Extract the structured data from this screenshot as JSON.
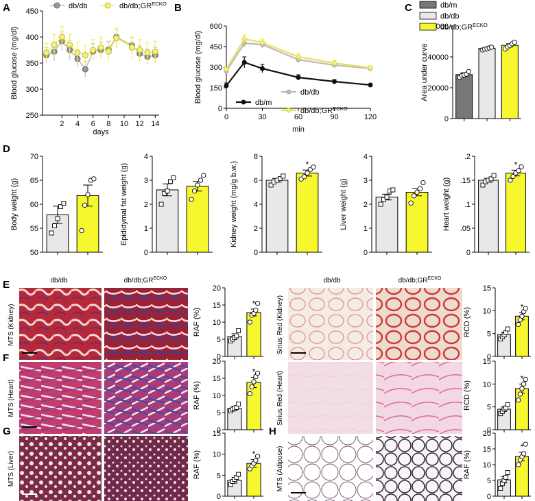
{
  "figure": {
    "panels": [
      "A",
      "B",
      "C",
      "D",
      "E",
      "F",
      "G",
      "H"
    ],
    "image_labels": {
      "col1": "db/db",
      "col2": "db/db;GR",
      "col2_sup": "ECKO"
    },
    "row_labels": {
      "e_left": "MTS (Kidney)",
      "f_left": "MTS (Heart)",
      "g_left": "MTS (Liver)",
      "e_right": "Sirius Red (Kidney)",
      "f_right": "Sirius Red (Heart)",
      "h_right": "MTS (Adipose)"
    },
    "colors": {
      "dbm": "#777777",
      "dbdb": "#e8e8e8",
      "gr": "#f7f72e",
      "line_dbdb": "#bbbbbb",
      "line_gr": "#f5f050",
      "line_dbm": "#111111"
    }
  },
  "chart_data": [
    {
      "id": "A",
      "type": "line",
      "title": "",
      "xlabel": "days",
      "ylabel": "Blood glucose (mg/dl)",
      "ylim": [
        250,
        450
      ],
      "yticks": [
        250,
        300,
        350,
        400,
        450
      ],
      "xlim": [
        0,
        14
      ],
      "xticks": [
        2,
        4,
        6,
        8,
        10,
        12,
        14
      ],
      "legend": [
        {
          "name": "db/db"
        },
        {
          "name": "db/db;GR",
          "sup": "ECKO"
        }
      ],
      "series": [
        {
          "name": "db/db",
          "x": [
            0,
            1,
            2,
            3,
            4,
            5,
            6,
            7,
            8,
            9,
            11,
            12,
            13,
            14
          ],
          "y": [
            365,
            372,
            392,
            375,
            358,
            338,
            372,
            375,
            376,
            400,
            384,
            368,
            362,
            365
          ],
          "err": [
            15,
            18,
            18,
            18,
            15,
            15,
            15,
            15,
            15,
            15,
            15,
            15,
            15,
            15
          ]
        },
        {
          "name": "db/db;GR",
          "x": [
            0,
            1,
            2,
            3,
            4,
            5,
            6,
            7,
            8,
            9,
            11,
            12,
            13,
            14
          ],
          "y": [
            370,
            385,
            400,
            385,
            370,
            365,
            375,
            380,
            372,
            398,
            380,
            375,
            370,
            372
          ],
          "err": [
            18,
            20,
            20,
            20,
            20,
            20,
            20,
            20,
            20,
            20,
            20,
            20,
            20,
            20
          ]
        }
      ]
    },
    {
      "id": "B",
      "type": "line",
      "xlabel": "min",
      "ylabel": "Blood glucose (mg/dl)",
      "ylim": [
        0,
        600
      ],
      "yticks": [
        0,
        150,
        300,
        450,
        600
      ],
      "xticks": [
        0,
        30,
        60,
        90,
        120
      ],
      "legend": [
        {
          "name": "db/db"
        },
        {
          "name": "db/m"
        },
        {
          "name": "db/db;GR",
          "sup": "ECKO"
        }
      ],
      "series": [
        {
          "name": "db/m",
          "x": [
            0,
            15,
            30,
            60,
            90,
            120
          ],
          "y": [
            165,
            335,
            290,
            225,
            195,
            170
          ],
          "err": [
            20,
            40,
            30,
            20,
            15,
            10
          ]
        },
        {
          "name": "db/db",
          "x": [
            0,
            15,
            30,
            60,
            90,
            120
          ],
          "y": [
            270,
            475,
            465,
            355,
            315,
            290
          ],
          "err": [
            15,
            30,
            25,
            25,
            15,
            10
          ]
        },
        {
          "name": "db/db;GR",
          "x": [
            0,
            15,
            30,
            60,
            90,
            120
          ],
          "y": [
            285,
            505,
            480,
            375,
            330,
            295
          ],
          "err": [
            15,
            30,
            25,
            25,
            20,
            15
          ]
        }
      ]
    },
    {
      "id": "C",
      "type": "bar",
      "ylabel": "Area under curve",
      "ylim": [
        0,
        60000
      ],
      "yticks": [
        0,
        20000,
        40000,
        60000
      ],
      "legend": [
        {
          "name": "db/m"
        },
        {
          "name": "db/db"
        },
        {
          "name": "db/db;GR",
          "sup": "ECKO"
        }
      ],
      "categories": [
        "db/m",
        "db/db",
        "db/db;GR"
      ],
      "values": [
        28500,
        45500,
        47500
      ],
      "err": [
        1200,
        800,
        1000
      ],
      "points": [
        [
          26800,
          27800,
          28300,
          28800,
          30500
        ],
        [
          44500,
          45000,
          45300,
          45800,
          46300
        ],
        [
          45200,
          46500,
          47300,
          48500,
          49500
        ]
      ]
    },
    {
      "id": "D1",
      "type": "bar",
      "ylabel": "Body weight (g)",
      "ylim": [
        50,
        70
      ],
      "yticks": [
        50,
        55,
        60,
        65,
        70
      ],
      "categories": [
        "db/db",
        "db/db;GR"
      ],
      "values": [
        57.8,
        61.8
      ],
      "err": [
        1.8,
        2.2
      ],
      "points": [
        [
          54,
          55.5,
          57,
          59.5,
          60.2
        ],
        [
          54.5,
          59.8,
          62,
          65,
          65.3
        ]
      ],
      "sig": []
    },
    {
      "id": "D2",
      "type": "bar",
      "ylabel": "Epididymal fat weight (g)",
      "ylim": [
        0,
        4
      ],
      "yticks": [
        0,
        1,
        2,
        3,
        4
      ],
      "categories": [
        "db/db",
        "db/db;GR"
      ],
      "values": [
        2.6,
        2.75
      ],
      "err": [
        0.25,
        0.2
      ],
      "points": [
        [
          2.0,
          2.45,
          2.55,
          2.95,
          3.1
        ],
        [
          2.2,
          2.55,
          2.8,
          3.0,
          3.2
        ]
      ],
      "sig": []
    },
    {
      "id": "D3",
      "type": "bar",
      "ylabel": "Kidney weight (mg/g b.w.)",
      "ylim": [
        0,
        8
      ],
      "yticks": [
        0,
        2,
        4,
        6,
        8
      ],
      "categories": [
        "db/db",
        "db/db;GR"
      ],
      "values": [
        6.0,
        6.6
      ],
      "err": [
        0.15,
        0.25
      ],
      "points": [
        [
          5.6,
          5.85,
          6.0,
          6.15,
          6.35
        ],
        [
          6.1,
          6.3,
          6.6,
          6.9,
          7.1
        ]
      ],
      "sig": [
        "",
        "*"
      ]
    },
    {
      "id": "D4",
      "type": "bar",
      "ylabel": "Liver weight (g)",
      "ylim": [
        0,
        4
      ],
      "yticks": [
        0,
        1,
        2,
        3,
        4
      ],
      "categories": [
        "db/db",
        "db/db;GR"
      ],
      "values": [
        2.3,
        2.5
      ],
      "err": [
        0.12,
        0.15
      ],
      "points": [
        [
          2.0,
          2.2,
          2.3,
          2.55,
          2.6
        ],
        [
          2.05,
          2.35,
          2.5,
          2.65,
          2.9
        ]
      ],
      "sig": []
    },
    {
      "id": "D5",
      "type": "bar",
      "ylabel": "Heart weight (g)",
      "ylim": [
        0,
        0.2
      ],
      "yticks": [
        0,
        0.05,
        0.1,
        0.15,
        0.2
      ],
      "ytick_labels": [
        "0",
        ".05",
        ".1",
        ".15",
        ".2"
      ],
      "categories": [
        "db/db",
        "db/db;GR"
      ],
      "values": [
        0.15,
        0.165
      ],
      "err": [
        0.004,
        0.006
      ],
      "points": [
        [
          0.14,
          0.147,
          0.15,
          0.153,
          0.16
        ],
        [
          0.15,
          0.158,
          0.165,
          0.17,
          0.178
        ]
      ],
      "sig": [
        "",
        "*"
      ]
    },
    {
      "id": "E_RAF",
      "type": "bar",
      "ylabel": "RAF (%)",
      "ylim": [
        0,
        20
      ],
      "yticks": [
        0,
        5,
        10,
        15,
        20
      ],
      "categories": [
        "db/db",
        "db/db;GR"
      ],
      "values": [
        5.8,
        12.8
      ],
      "err": [
        0.8,
        1.0
      ],
      "points": [
        [
          4.5,
          5.0,
          5.5,
          6.0,
          7.5
        ],
        [
          10.0,
          12.0,
          12.5,
          13.5,
          15.5
        ]
      ],
      "sig": [
        "",
        "*"
      ]
    },
    {
      "id": "E_RCD",
      "type": "bar",
      "ylabel": "RCD (%)",
      "ylim": [
        0,
        15
      ],
      "yticks": [
        0,
        5,
        10,
        15
      ],
      "categories": [
        "db/db",
        "db/db;GR"
      ],
      "values": [
        4.8,
        8.8
      ],
      "err": [
        0.5,
        0.8
      ],
      "points": [
        [
          3.8,
          4.3,
          4.7,
          5.2,
          6.0
        ],
        [
          7.0,
          8.0,
          8.8,
          9.8,
          10.5
        ]
      ],
      "sig": [
        "",
        "*"
      ]
    },
    {
      "id": "F_RAF",
      "type": "bar",
      "ylabel": "RAF (%)",
      "ylim": [
        0,
        20
      ],
      "yticks": [
        0,
        5,
        10,
        15,
        20
      ],
      "categories": [
        "db/db",
        "db/db;GR"
      ],
      "values": [
        6.2,
        13.8
      ],
      "err": [
        0.6,
        1.5
      ],
      "points": [
        [
          5.5,
          6.0,
          6.2,
          6.5,
          7.5
        ],
        [
          10.5,
          12.5,
          14.0,
          15.5,
          16.5
        ]
      ],
      "sig": [
        "",
        "*"
      ]
    },
    {
      "id": "F_RCD",
      "type": "bar",
      "ylabel": "RCD (%)",
      "ylim": [
        0,
        15
      ],
      "yticks": [
        0,
        5,
        10,
        15
      ],
      "categories": [
        "db/db",
        "db/db;GR"
      ],
      "values": [
        4.5,
        9.0
      ],
      "err": [
        0.5,
        1.0
      ],
      "points": [
        [
          3.5,
          4.0,
          4.5,
          4.8,
          5.5
        ],
        [
          6.5,
          7.8,
          9.0,
          10.0,
          11.0
        ]
      ],
      "sig": [
        "",
        "*"
      ]
    },
    {
      "id": "G_RAF",
      "type": "bar",
      "ylabel": "RAF (%)",
      "ylim": [
        0,
        15
      ],
      "yticks": [
        0,
        5,
        10,
        15
      ],
      "categories": [
        "db/db",
        "db/db;GR"
      ],
      "values": [
        3.8,
        7.8
      ],
      "err": [
        0.7,
        0.9
      ],
      "points": [
        [
          2.8,
          3.5,
          4.0,
          4.5,
          5.2
        ],
        [
          6.5,
          7.2,
          7.8,
          8.5,
          9.5
        ]
      ],
      "sig": [
        "",
        "*"
      ]
    },
    {
      "id": "H_RAF",
      "type": "bar",
      "ylabel": "RAF (%)",
      "ylim": [
        0,
        20
      ],
      "yticks": [
        0,
        5,
        10,
        15,
        20
      ],
      "categories": [
        "db/db",
        "db/db;GR"
      ],
      "values": [
        5.2,
        12.6
      ],
      "err": [
        1.0,
        1.3
      ],
      "points": [
        [
          2.5,
          4.0,
          5.0,
          6.0,
          7.5
        ],
        [
          10.0,
          11.5,
          12.5,
          13.5,
          16.5
        ]
      ],
      "sig": [
        "",
        "*"
      ]
    }
  ]
}
